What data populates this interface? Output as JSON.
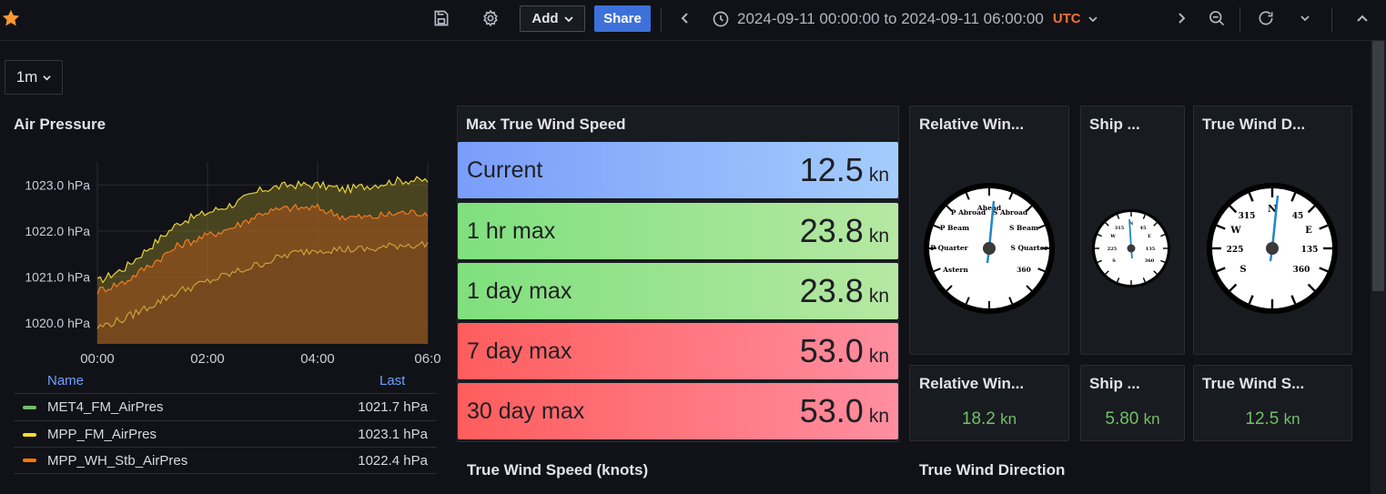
{
  "toolbar": {
    "add_label": "Add",
    "share_label": "Share",
    "time_range": "2024-09-11 00:00:00 to 2024-09-11 06:00:00",
    "timezone": "UTC"
  },
  "interval": {
    "value": "1m"
  },
  "air_pressure": {
    "title": "Air Pressure",
    "legend_header_name": "Name",
    "legend_header_last": "Last",
    "legend": [
      {
        "name": "MET4_FM_AirPres",
        "last": "1021.7 hPa",
        "color": "#73bf69"
      },
      {
        "name": "MPP_FM_AirPres",
        "last": "1023.1 hPa",
        "color": "#fade2a"
      },
      {
        "name": "MPP_WH_Stb_AirPres",
        "last": "1022.4 hPa",
        "color": "#ff780a"
      }
    ]
  },
  "chart_data": {
    "type": "area",
    "title": "Air Pressure",
    "x_ticks": [
      "00:00",
      "02:00",
      "04:00",
      "06:0"
    ],
    "y_ticks": [
      "1023.0 hPa",
      "1022.0 hPa",
      "1021.0 hPa",
      "1020.0 hPa"
    ],
    "ylim": [
      1019.55,
      1023.5
    ],
    "x": [
      "00:00",
      "00:30",
      "01:00",
      "01:30",
      "02:00",
      "02:30",
      "03:00",
      "03:30",
      "04:00",
      "04:30",
      "05:00",
      "05:30",
      "06:00"
    ],
    "series": [
      {
        "name": "MPP_FM_AirPres",
        "color": "#fade2a",
        "values": [
          1020.9,
          1021.2,
          1021.7,
          1022.2,
          1022.4,
          1022.6,
          1022.9,
          1023.0,
          1023.0,
          1022.9,
          1023.0,
          1023.1,
          1023.1
        ]
      },
      {
        "name": "MPP_WH_Stb_AirPres",
        "color": "#ff780a",
        "values": [
          1020.7,
          1020.9,
          1021.3,
          1021.7,
          1021.9,
          1022.1,
          1022.4,
          1022.5,
          1022.5,
          1022.3,
          1022.3,
          1022.4,
          1022.4
        ]
      },
      {
        "name": "MET4_FM_AirPres",
        "color": "#73bf69",
        "values": [
          1019.9,
          1020.1,
          1020.4,
          1020.7,
          1020.9,
          1021.1,
          1021.3,
          1021.5,
          1021.6,
          1021.6,
          1021.6,
          1021.7,
          1021.7
        ]
      }
    ]
  },
  "max_wind": {
    "title": "Max True Wind Speed",
    "unit": "kn",
    "rows": [
      {
        "label": "Current",
        "value": "12.5"
      },
      {
        "label": "1 hr max",
        "value": "23.8"
      },
      {
        "label": "1 day max",
        "value": "23.8"
      },
      {
        "label": "7 day max",
        "value": "53.0"
      },
      {
        "label": "30 day max",
        "value": "53.0"
      }
    ]
  },
  "gauges": {
    "relative": {
      "title": "Relative Win...",
      "labels": [
        "Ahead",
        "P Abroad",
        "S Abroad",
        "P Beam",
        "S Beam",
        "P Quarter",
        "S Quarter",
        "Astern",
        "360"
      ]
    },
    "ship": {
      "title": "Ship ...",
      "labels": [
        "N",
        "315",
        "45",
        "W",
        "E",
        "225",
        "135",
        "S",
        "360"
      ]
    },
    "true_dir": {
      "title": "True Wind D...",
      "labels": [
        "N",
        "315",
        "45",
        "W",
        "E",
        "225",
        "135",
        "S",
        "360"
      ]
    }
  },
  "stats": {
    "relative": {
      "title": "Relative Win...",
      "value": "18.2",
      "unit": "kn"
    },
    "ship": {
      "title": "Ship ...",
      "value": "5.80",
      "unit": "kn"
    },
    "true_speed": {
      "title": "True Wind S...",
      "value": "12.5",
      "unit": "kn"
    }
  },
  "bottom": {
    "wind_speed_title": "True Wind Speed (knots)",
    "wind_dir_title": "True Wind Direction"
  }
}
